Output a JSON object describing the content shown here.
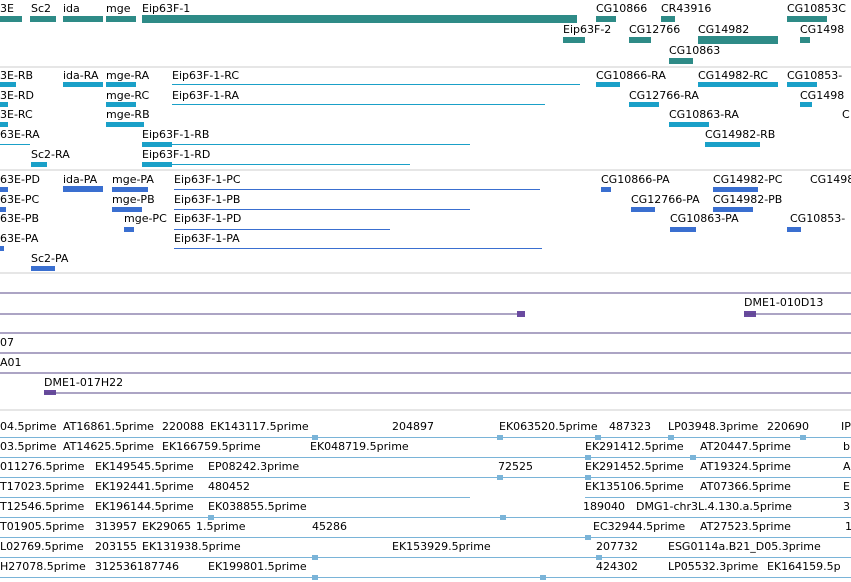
{
  "colors": {
    "gene": "#2e8b87",
    "transcript_ra": "#1aa0c8",
    "protein_pa": "#3a6fd0",
    "clone": "#6a4aa0",
    "est": "#7ab4d8",
    "divider": "#cccccc",
    "clone_line": "#5a4a8a"
  },
  "icons": {
    "forward_arrow": "arrow-right-icon",
    "reverse_arrow": "arrow-left-icon"
  },
  "gene_track": {
    "labels": [
      "3E",
      "Sc2",
      "ida",
      "mge",
      "Eip63F-1",
      "CG10866",
      "CR43916",
      "CG10853C",
      "Eip63F-2",
      "CG12766",
      "CG14982",
      "CG1498",
      "CG10863"
    ]
  },
  "transcript_track": {
    "labels": [
      "3E-RB",
      "ida-RA",
      "mge-RA",
      "Eip63F-1-RC",
      "CG10866-RA",
      "CG14982-RC",
      "CG10853-",
      "3E-RD",
      "mge-RC",
      "Eip63F-1-RA",
      "CG12766-RA",
      "CG1498",
      "3E-RC",
      "mge-RB",
      "CG10863-RA",
      "C",
      "63E-RA",
      "Eip63F-1-RB",
      "CG14982-RB",
      "Sc2-RA",
      "Eip63F-1-RD"
    ]
  },
  "protein_track": {
    "labels": [
      "63E-PD",
      "ida-PA",
      "mge-PA",
      "Eip63F-1-PC",
      "CG10866-PA",
      "CG14982-PC",
      "CG1498",
      "63E-PC",
      "mge-PB",
      "Eip63F-1-PB",
      "CG12766-PA",
      "CG14982-PB",
      "63E-PB",
      "mge-PC",
      "Eip63F-1-PD",
      "CG10863-PA",
      "CG10853-",
      "63E-PA",
      "Eip63F-1-PA",
      "Sc2-PA"
    ]
  },
  "clone_track": {
    "labels": [
      "DME1-010D13",
      "07",
      "A01",
      "DME1-017H22"
    ]
  },
  "est_track": {
    "rows": [
      [
        "04.5prime",
        "AT16861.5prime",
        "220088",
        "EK143117.5prime",
        "204897",
        "EK063520.5prime",
        "487323",
        "LP03948.3prime",
        "220690",
        "IP"
      ],
      [
        "03.5prime",
        "AT14625.5prime",
        "EK166759.5prime",
        "EK048719.5prime",
        "EK291412.5prime",
        "AT20447.5prime",
        "b"
      ],
      [
        "011276.5prime",
        "EK149545.5prime",
        "EP08242.3prime",
        "72525",
        "EK291452.5prime",
        "AT19324.5prime",
        "A"
      ],
      [
        "T17023.5prime",
        "EK192441.5prime",
        "480452",
        "EK135106.5prime",
        "AT07366.5prime",
        "E"
      ],
      [
        "T12546.5prime",
        "EK196144.5prime",
        "EK038855.5prime",
        "189040",
        "DMG1-chr3L.4.130.a.5prime",
        "3"
      ],
      [
        "T01905.5prime",
        "313957",
        "EK29065",
        "1.5prime",
        "45286",
        "EC32944.5prime",
        "AT27523.5prime",
        "1"
      ],
      [
        "L02769.5prime",
        "203155",
        "EK131938.5prime",
        "EK153929.5prime",
        "207732",
        "ESG0114a.B21_D05.3prime"
      ],
      [
        "H27078.5prime",
        "312536187746",
        "EK199801.5prime",
        "424302",
        "LP05532.3prime",
        "EK164159.5p"
      ]
    ]
  }
}
